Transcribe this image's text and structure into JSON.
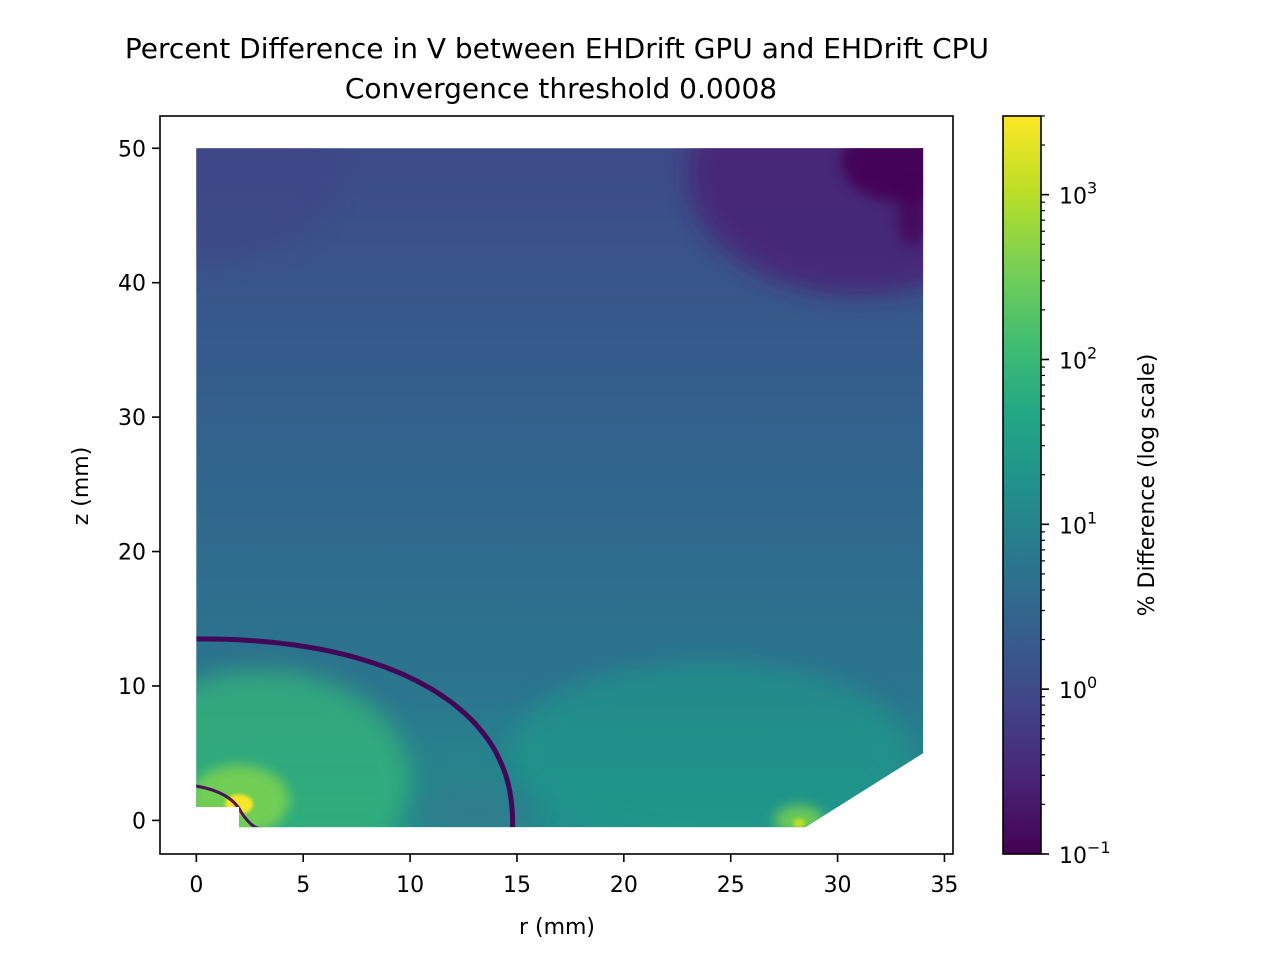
{
  "chart_data": {
    "type": "heatmap",
    "title": "Percent Difference in V between EHDrift GPU and EHDrift CPU",
    "subtitle": "Convergence threshold 0.0008",
    "xlabel": "r (mm)",
    "ylabel": "z (mm)",
    "xlim": [
      -1.7,
      35.4
    ],
    "ylim": [
      -2.5,
      52.4
    ],
    "x_ticks": [
      0,
      5,
      10,
      15,
      20,
      25,
      30,
      35
    ],
    "x_tick_labels": [
      "0",
      "5",
      "10",
      "15",
      "20",
      "25",
      "30",
      "35"
    ],
    "y_ticks": [
      0,
      10,
      20,
      30,
      40,
      50
    ],
    "y_tick_labels": [
      "0",
      "10",
      "20",
      "30",
      "40",
      "50"
    ],
    "grid": false,
    "colormap": "viridis",
    "colorbar": {
      "label": "% Difference (log scale)",
      "scale": "log",
      "range": [
        0.1,
        3000
      ],
      "ticks": [
        0.1,
        1,
        10,
        100,
        1000
      ],
      "tick_base": "10",
      "tick_exponents": [
        "−1",
        "0",
        "1",
        "2",
        "3"
      ]
    },
    "region_outline_mm": [
      [
        0,
        50
      ],
      [
        34,
        50
      ],
      [
        34,
        5
      ],
      [
        28.5,
        -0.5
      ],
      [
        2,
        -0.5
      ],
      [
        2,
        1
      ],
      [
        0,
        1
      ]
    ],
    "features": {
      "zero_contour_curve": {
        "start": [
          0,
          13.5
        ],
        "end": [
          14.8,
          -0.5
        ]
      },
      "value_ranges": {
        "top_right": 0.2,
        "top_left": 0.6,
        "mid": 3,
        "lower_right": 30,
        "lower_left": 100,
        "near_origin": 800,
        "near_r28": 150
      }
    }
  }
}
